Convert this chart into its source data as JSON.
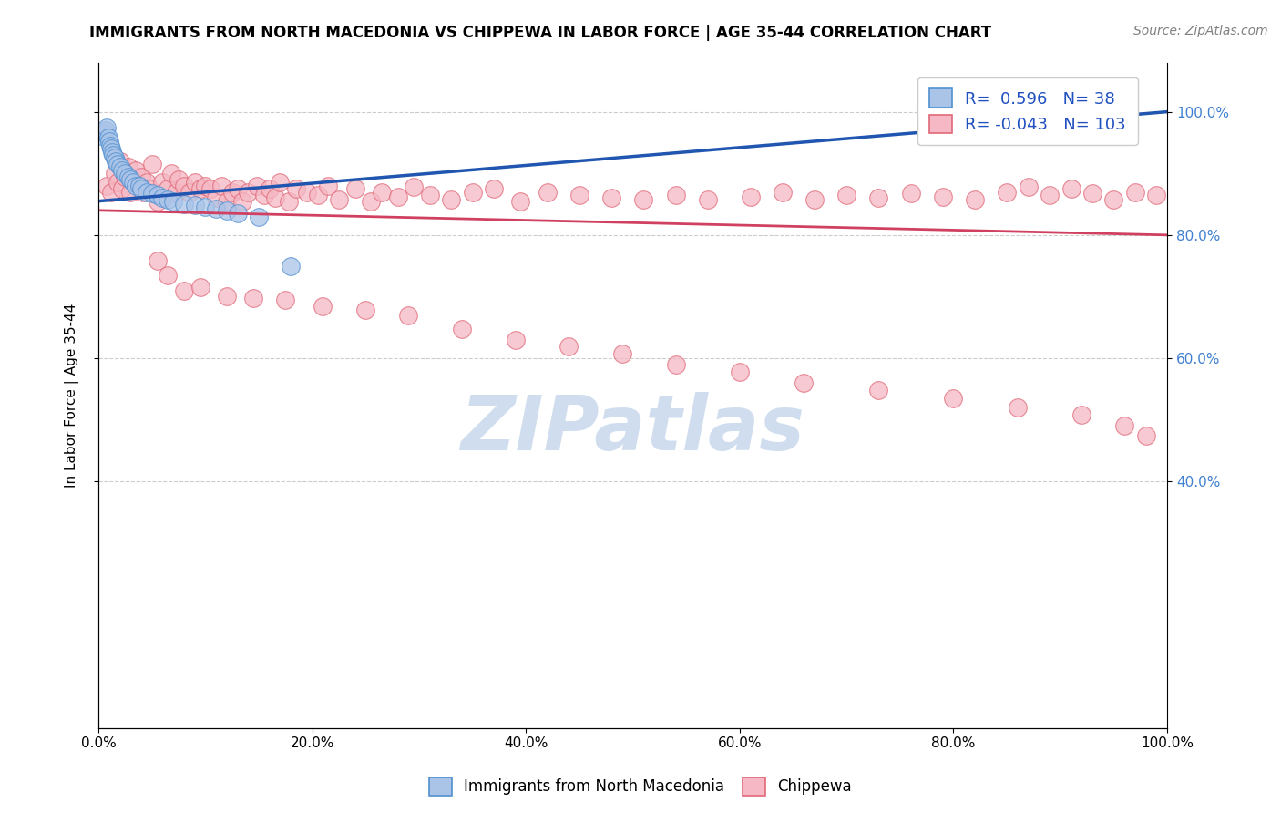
{
  "title": "IMMIGRANTS FROM NORTH MACEDONIA VS CHIPPEWA IN LABOR FORCE | AGE 35-44 CORRELATION CHART",
  "source": "Source: ZipAtlas.com",
  "ylabel": "In Labor Force | Age 35-44",
  "xlim": [
    0.0,
    1.0
  ],
  "ylim": [
    0.0,
    1.08
  ],
  "xtick_values": [
    0.0,
    0.2,
    0.4,
    0.6,
    0.8,
    1.0
  ],
  "xtick_labels": [
    "0.0%",
    "20.0%",
    "40.0%",
    "60.0%",
    "80.0%",
    "100.0%"
  ],
  "ytick_values": [
    0.4,
    0.6,
    0.8,
    1.0
  ],
  "ytick_labels": [
    "40.0%",
    "60.0%",
    "80.0%",
    "100.0%"
  ],
  "blue_R": 0.596,
  "blue_N": 38,
  "pink_R": -0.043,
  "pink_N": 103,
  "blue_fill_color": "#aac4e8",
  "pink_fill_color": "#f5b8c4",
  "blue_edge_color": "#5090d0",
  "pink_edge_color": "#e06878",
  "blue_trend_color": "#2055b0",
  "pink_trend_color": "#d04060",
  "watermark_color": "#c8d8ec",
  "title_fontsize": 12,
  "source_fontsize": 10,
  "legend_fontsize": 13,
  "right_axis_color": "#4080d0",
  "blue_scatter_x": [
    0.005,
    0.006,
    0.007,
    0.008,
    0.009,
    0.01,
    0.011,
    0.012,
    0.013,
    0.014,
    0.015,
    0.016,
    0.018,
    0.02,
    0.022,
    0.025,
    0.028,
    0.03,
    0.032,
    0.035,
    0.038,
    0.04,
    0.045,
    0.05,
    0.055,
    0.06,
    0.065,
    0.07,
    0.08,
    0.09,
    0.1,
    0.11,
    0.12,
    0.13,
    0.15,
    0.18,
    0.88,
    0.96
  ],
  "blue_scatter_y": [
    0.96,
    0.965,
    0.97,
    0.975,
    0.958,
    0.952,
    0.945,
    0.94,
    0.935,
    0.93,
    0.925,
    0.92,
    0.915,
    0.91,
    0.905,
    0.9,
    0.895,
    0.89,
    0.885,
    0.88,
    0.88,
    0.875,
    0.87,
    0.868,
    0.865,
    0.86,
    0.858,
    0.855,
    0.85,
    0.848,
    0.845,
    0.842,
    0.84,
    0.835,
    0.83,
    0.75,
    0.985,
    1.0
  ],
  "pink_scatter_x": [
    0.008,
    0.012,
    0.015,
    0.018,
    0.02,
    0.022,
    0.025,
    0.028,
    0.03,
    0.032,
    0.035,
    0.038,
    0.04,
    0.042,
    0.045,
    0.048,
    0.05,
    0.055,
    0.06,
    0.065,
    0.068,
    0.072,
    0.075,
    0.08,
    0.085,
    0.09,
    0.095,
    0.1,
    0.105,
    0.11,
    0.115,
    0.12,
    0.125,
    0.13,
    0.135,
    0.14,
    0.148,
    0.155,
    0.16,
    0.165,
    0.17,
    0.178,
    0.185,
    0.195,
    0.205,
    0.215,
    0.225,
    0.24,
    0.255,
    0.265,
    0.28,
    0.295,
    0.31,
    0.33,
    0.35,
    0.37,
    0.395,
    0.42,
    0.45,
    0.48,
    0.51,
    0.54,
    0.57,
    0.61,
    0.64,
    0.67,
    0.7,
    0.73,
    0.76,
    0.79,
    0.82,
    0.85,
    0.87,
    0.89,
    0.91,
    0.93,
    0.95,
    0.97,
    0.99,
    0.055,
    0.065,
    0.08,
    0.095,
    0.12,
    0.145,
    0.175,
    0.21,
    0.25,
    0.29,
    0.34,
    0.39,
    0.44,
    0.49,
    0.54,
    0.6,
    0.66,
    0.73,
    0.8,
    0.86,
    0.92,
    0.96,
    0.98
  ],
  "pink_scatter_y": [
    0.88,
    0.87,
    0.9,
    0.885,
    0.92,
    0.875,
    0.895,
    0.91,
    0.87,
    0.89,
    0.905,
    0.88,
    0.895,
    0.87,
    0.885,
    0.875,
    0.915,
    0.855,
    0.885,
    0.875,
    0.9,
    0.87,
    0.89,
    0.88,
    0.87,
    0.885,
    0.875,
    0.88,
    0.875,
    0.86,
    0.88,
    0.855,
    0.87,
    0.875,
    0.855,
    0.87,
    0.88,
    0.865,
    0.875,
    0.86,
    0.885,
    0.855,
    0.875,
    0.87,
    0.865,
    0.88,
    0.858,
    0.875,
    0.855,
    0.87,
    0.862,
    0.878,
    0.865,
    0.858,
    0.87,
    0.875,
    0.855,
    0.87,
    0.865,
    0.86,
    0.858,
    0.865,
    0.858,
    0.862,
    0.87,
    0.858,
    0.865,
    0.86,
    0.868,
    0.862,
    0.858,
    0.87,
    0.878,
    0.865,
    0.875,
    0.868,
    0.858,
    0.87,
    0.865,
    0.758,
    0.735,
    0.71,
    0.715,
    0.7,
    0.698,
    0.695,
    0.685,
    0.678,
    0.67,
    0.648,
    0.63,
    0.62,
    0.608,
    0.59,
    0.578,
    0.56,
    0.548,
    0.535,
    0.52,
    0.508,
    0.49,
    0.475
  ]
}
